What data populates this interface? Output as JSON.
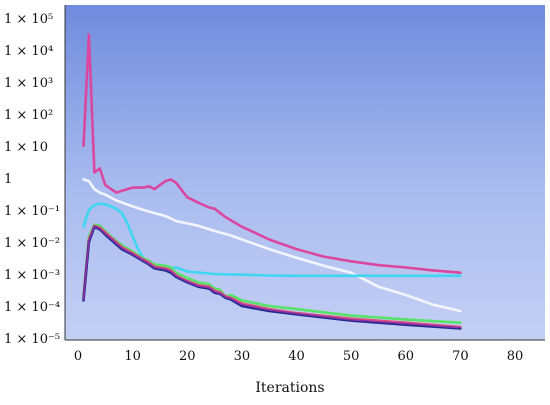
{
  "chart_data": {
    "type": "line",
    "title": "",
    "xlabel": "Iterations",
    "ylabel": "",
    "yscale": "log",
    "xlim": [
      0,
      80
    ],
    "ylim": [
      1e-05,
      100000.0
    ],
    "grid": false,
    "background": "blue-gradient",
    "xticks": [
      {
        "value": 0,
        "label": "0"
      },
      {
        "value": 10,
        "label": "10"
      },
      {
        "value": 20,
        "label": "20"
      },
      {
        "value": 30,
        "label": "30"
      },
      {
        "value": 40,
        "label": "40"
      },
      {
        "value": 50,
        "label": "50"
      },
      {
        "value": 60,
        "label": "60"
      },
      {
        "value": 70,
        "label": "70"
      },
      {
        "value": 80,
        "label": "80"
      }
    ],
    "yticks": [
      {
        "value": 100000,
        "label": "1 × 10⁵"
      },
      {
        "value": 10000,
        "label": "1 × 10⁴"
      },
      {
        "value": 1000,
        "label": "1 × 10³"
      },
      {
        "value": 100,
        "label": "1 × 10²"
      },
      {
        "value": 10,
        "label": "1 × 10"
      },
      {
        "value": 1,
        "label": "1"
      },
      {
        "value": 0.1,
        "label": "1 × 10⁻¹"
      },
      {
        "value": 0.01,
        "label": "1 × 10⁻²"
      },
      {
        "value": 0.001,
        "label": "1 × 10⁻³"
      },
      {
        "value": 0.0001,
        "label": "1 × 10⁻⁴"
      },
      {
        "value": 1e-05,
        "label": "1 × 10⁻⁵"
      }
    ],
    "series": [
      {
        "color": "#d9479f",
        "width": 2.6,
        "x": [
          1,
          2,
          3,
          4,
          5,
          7,
          10,
          12,
          13,
          14,
          16,
          17,
          18,
          20,
          22,
          24,
          25,
          27,
          30,
          35,
          40,
          45,
          50,
          55,
          60,
          65,
          70
        ],
        "y": [
          10,
          30000,
          1.5,
          2,
          0.6,
          0.35,
          0.5,
          0.5,
          0.55,
          0.45,
          0.8,
          0.9,
          0.7,
          0.25,
          0.17,
          0.12,
          0.11,
          0.06,
          0.03,
          0.012,
          0.006,
          0.0035,
          0.0025,
          0.0019,
          0.0016,
          0.0013,
          0.0011
        ]
      },
      {
        "color": "#f2f4ff",
        "width": 2.6,
        "x": [
          1,
          2,
          3,
          4,
          5,
          7,
          10,
          12,
          14,
          16,
          18,
          20,
          22,
          25,
          28,
          30,
          35,
          40,
          45,
          50,
          55,
          60,
          65,
          70
        ],
        "y": [
          0.9,
          0.8,
          0.45,
          0.35,
          0.3,
          0.2,
          0.13,
          0.1,
          0.08,
          0.065,
          0.045,
          0.038,
          0.032,
          0.022,
          0.016,
          0.012,
          0.006,
          0.0032,
          0.0018,
          0.0011,
          0.0004,
          0.00022,
          0.00011,
          7e-05
        ]
      },
      {
        "color": "#3ed6f0",
        "width": 2.6,
        "x": [
          1,
          2,
          3,
          4,
          5,
          6,
          7,
          8,
          9,
          10,
          11,
          12,
          13,
          14,
          16,
          18,
          20,
          25,
          30,
          35,
          40,
          50,
          60,
          70
        ],
        "y": [
          0.03,
          0.1,
          0.14,
          0.16,
          0.15,
          0.13,
          0.11,
          0.08,
          0.04,
          0.015,
          0.006,
          0.003,
          0.002,
          0.0016,
          0.0014,
          0.0016,
          0.0012,
          0.001,
          0.00095,
          0.0009,
          0.00088,
          0.00088,
          0.00088,
          0.00088
        ]
      },
      {
        "color": "#57e36a",
        "width": 2.6,
        "x": [
          1,
          2,
          3,
          4,
          5,
          6,
          8,
          10,
          12,
          13,
          14,
          16,
          17,
          18,
          20,
          22,
          24,
          25,
          26,
          27,
          28,
          30,
          35,
          40,
          50,
          60,
          70
        ],
        "y": [
          0.0002,
          0.015,
          0.035,
          0.032,
          0.022,
          0.015,
          0.008,
          0.005,
          0.003,
          0.0026,
          0.002,
          0.0018,
          0.0016,
          0.0011,
          0.00075,
          0.00055,
          0.00048,
          0.00035,
          0.00032,
          0.0002,
          0.00022,
          0.00015,
          0.0001,
          8e-05,
          5e-05,
          3.8e-05,
          3e-05
        ]
      },
      {
        "color": "#e0527a",
        "width": 2.6,
        "x": [
          1,
          2,
          3,
          4,
          5,
          6,
          8,
          10,
          12,
          13,
          14,
          16,
          17,
          18,
          20,
          22,
          24,
          25,
          26,
          27,
          28,
          30,
          35,
          40,
          50,
          60,
          70
        ],
        "y": [
          0.00018,
          0.012,
          0.032,
          0.028,
          0.02,
          0.014,
          0.007,
          0.0045,
          0.0028,
          0.0023,
          0.0017,
          0.0015,
          0.0013,
          0.0009,
          0.0006,
          0.00045,
          0.0004,
          0.0003,
          0.00027,
          0.0002,
          0.00018,
          0.00012,
          8e-05,
          6e-05,
          4e-05,
          3e-05,
          2.2e-05
        ]
      },
      {
        "color": "#1f2a8a",
        "width": 2.6,
        "x": [
          1,
          2,
          3,
          4,
          5,
          6,
          8,
          10,
          12,
          13,
          14,
          16,
          17,
          18,
          20,
          22,
          24,
          25,
          26,
          27,
          28,
          30,
          35,
          40,
          50,
          60,
          70
        ],
        "y": [
          0.00015,
          0.01,
          0.03,
          0.025,
          0.017,
          0.012,
          0.006,
          0.004,
          0.0025,
          0.002,
          0.0015,
          0.0013,
          0.0011,
          0.0008,
          0.00055,
          0.0004,
          0.00035,
          0.00026,
          0.00024,
          0.00018,
          0.00016,
          0.0001,
          7e-05,
          5.5e-05,
          3.5e-05,
          2.6e-05,
          2e-05
        ]
      },
      {
        "color": "#8a2fa8",
        "width": 1.6,
        "x": [
          1,
          2,
          3,
          4,
          5,
          6,
          8,
          10,
          12,
          13,
          14,
          16,
          17,
          18,
          20,
          22,
          24,
          25,
          26,
          27,
          28,
          30,
          35,
          40,
          50,
          60,
          70
        ],
        "y": [
          0.00016,
          0.011,
          0.031,
          0.026,
          0.018,
          0.013,
          0.0065,
          0.0042,
          0.0026,
          0.0021,
          0.0016,
          0.0014,
          0.0012,
          0.00085,
          0.00058,
          0.00042,
          0.00037,
          0.00028,
          0.00025,
          0.00019,
          0.00017,
          0.00011,
          7.5e-05,
          5.8e-05,
          3.7e-05,
          2.8e-05,
          2.1e-05
        ]
      }
    ]
  }
}
